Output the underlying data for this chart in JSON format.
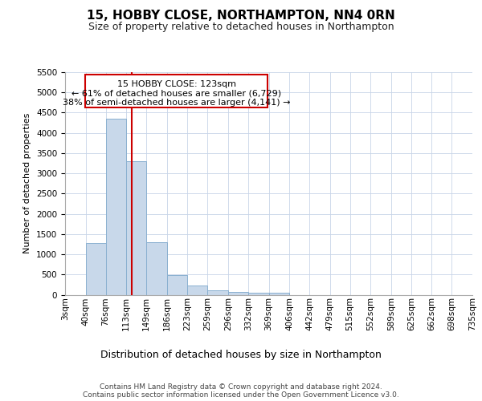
{
  "title": "15, HOBBY CLOSE, NORTHAMPTON, NN4 0RN",
  "subtitle": "Size of property relative to detached houses in Northampton",
  "xlabel": "Distribution of detached houses by size in Northampton",
  "ylabel": "Number of detached properties",
  "bar_color": "#c8d8ea",
  "bar_edge_color": "#8ab0d0",
  "grid_color": "#c8d4e8",
  "background_color": "#ffffff",
  "vline_color": "#cc0000",
  "annotation_box_edge": "#cc0000",
  "footer": "Contains HM Land Registry data © Crown copyright and database right 2024.\nContains public sector information licensed under the Open Government Licence v3.0.",
  "property_sqm": 123,
  "property_label": "15 HOBBY CLOSE: 123sqm",
  "annotation_line1": "← 61% of detached houses are smaller (6,729)",
  "annotation_line2": "38% of semi-detached houses are larger (4,141) →",
  "bin_edges": [
    3,
    40,
    76,
    113,
    149,
    186,
    223,
    259,
    296,
    332,
    369,
    406,
    442,
    479,
    515,
    552,
    589,
    625,
    662,
    698,
    735
  ],
  "counts": [
    0,
    1270,
    4350,
    3300,
    1300,
    480,
    230,
    100,
    75,
    50,
    50,
    0,
    0,
    0,
    0,
    0,
    0,
    0,
    0,
    0
  ],
  "ylim_max": 5500,
  "ytick_step": 500,
  "title_fontsize": 11,
  "subtitle_fontsize": 9,
  "ylabel_fontsize": 8,
  "xlabel_fontsize": 9,
  "tick_fontsize": 7.5,
  "footer_fontsize": 6.5,
  "annot_fontsize": 8
}
